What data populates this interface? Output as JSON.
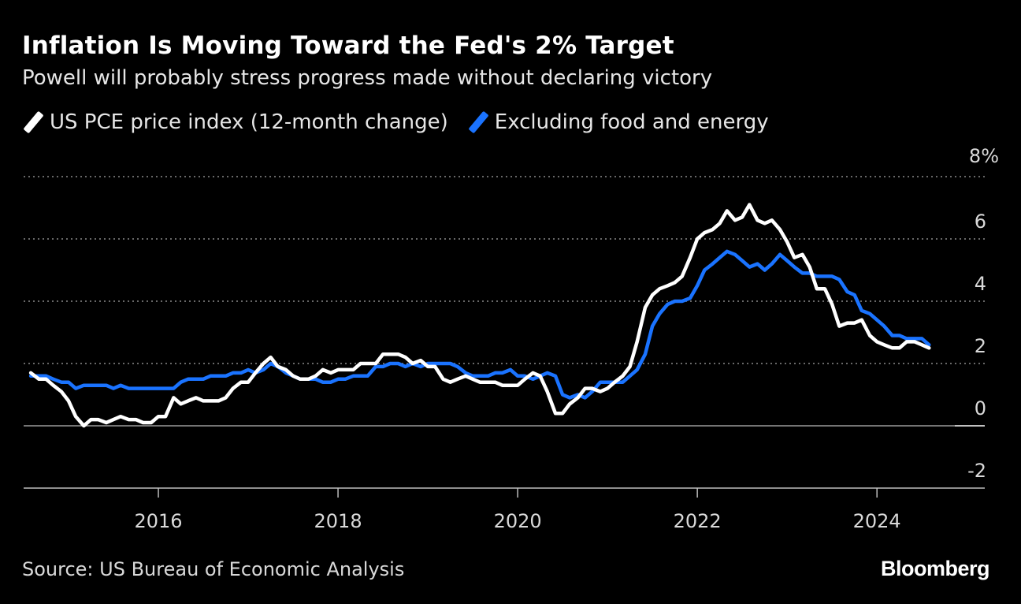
{
  "chart_data": {
    "type": "line",
    "title": "Inflation Is Moving Toward the Fed's 2% Target",
    "subtitle": "Powell will probably stress progress made without declaring victory",
    "source": "Source: US Bureau of Economic Analysis",
    "brand": "Bloomberg",
    "ylim": [
      -2,
      8
    ],
    "xlim": [
      2014.5,
      2025.2
    ],
    "y_ticks": [
      8,
      6,
      4,
      2,
      0,
      -2
    ],
    "y_tick_labels": [
      "8%",
      "6",
      "4",
      "2",
      "0",
      "-2"
    ],
    "x_ticks": [
      2016,
      2018,
      2020,
      2022,
      2024
    ],
    "x_tick_labels": [
      "2016",
      "2018",
      "2020",
      "2022",
      "2024"
    ],
    "grid": true,
    "legend_position": "top-left",
    "series": [
      {
        "name": "US PCE price index (12-month change)",
        "color": "#ffffff",
        "points": [
          [
            2014.58,
            1.7
          ],
          [
            2014.67,
            1.5
          ],
          [
            2014.75,
            1.5
          ],
          [
            2014.83,
            1.3
          ],
          [
            2014.92,
            1.1
          ],
          [
            2015.0,
            0.8
          ],
          [
            2015.08,
            0.3
          ],
          [
            2015.17,
            0.0
          ],
          [
            2015.25,
            0.2
          ],
          [
            2015.33,
            0.2
          ],
          [
            2015.42,
            0.1
          ],
          [
            2015.5,
            0.2
          ],
          [
            2015.58,
            0.3
          ],
          [
            2015.67,
            0.2
          ],
          [
            2015.75,
            0.2
          ],
          [
            2015.83,
            0.1
          ],
          [
            2015.92,
            0.1
          ],
          [
            2016.0,
            0.3
          ],
          [
            2016.08,
            0.3
          ],
          [
            2016.17,
            0.9
          ],
          [
            2016.25,
            0.7
          ],
          [
            2016.33,
            0.8
          ],
          [
            2016.42,
            0.9
          ],
          [
            2016.5,
            0.8
          ],
          [
            2016.58,
            0.8
          ],
          [
            2016.67,
            0.8
          ],
          [
            2016.75,
            0.9
          ],
          [
            2016.83,
            1.2
          ],
          [
            2016.92,
            1.4
          ],
          [
            2017.0,
            1.4
          ],
          [
            2017.08,
            1.7
          ],
          [
            2017.17,
            2.0
          ],
          [
            2017.25,
            2.2
          ],
          [
            2017.33,
            1.9
          ],
          [
            2017.42,
            1.8
          ],
          [
            2017.5,
            1.6
          ],
          [
            2017.58,
            1.5
          ],
          [
            2017.67,
            1.5
          ],
          [
            2017.75,
            1.6
          ],
          [
            2017.83,
            1.8
          ],
          [
            2017.92,
            1.7
          ],
          [
            2018.0,
            1.8
          ],
          [
            2018.08,
            1.8
          ],
          [
            2018.17,
            1.8
          ],
          [
            2018.25,
            2.0
          ],
          [
            2018.33,
            2.0
          ],
          [
            2018.42,
            2.0
          ],
          [
            2018.5,
            2.3
          ],
          [
            2018.58,
            2.3
          ],
          [
            2018.67,
            2.3
          ],
          [
            2018.75,
            2.2
          ],
          [
            2018.83,
            2.0
          ],
          [
            2018.92,
            2.1
          ],
          [
            2019.0,
            1.9
          ],
          [
            2019.08,
            1.9
          ],
          [
            2019.17,
            1.5
          ],
          [
            2019.25,
            1.4
          ],
          [
            2019.33,
            1.5
          ],
          [
            2019.42,
            1.6
          ],
          [
            2019.5,
            1.5
          ],
          [
            2019.58,
            1.4
          ],
          [
            2019.67,
            1.4
          ],
          [
            2019.75,
            1.4
          ],
          [
            2019.83,
            1.3
          ],
          [
            2019.92,
            1.3
          ],
          [
            2020.0,
            1.3
          ],
          [
            2020.08,
            1.5
          ],
          [
            2020.17,
            1.7
          ],
          [
            2020.25,
            1.6
          ],
          [
            2020.33,
            1.1
          ],
          [
            2020.42,
            0.4
          ],
          [
            2020.5,
            0.4
          ],
          [
            2020.58,
            0.7
          ],
          [
            2020.67,
            0.9
          ],
          [
            2020.75,
            1.2
          ],
          [
            2020.83,
            1.2
          ],
          [
            2020.92,
            1.1
          ],
          [
            2021.0,
            1.2
          ],
          [
            2021.08,
            1.4
          ],
          [
            2021.17,
            1.6
          ],
          [
            2021.25,
            1.9
          ],
          [
            2021.33,
            2.7
          ],
          [
            2021.42,
            3.8
          ],
          [
            2021.5,
            4.2
          ],
          [
            2021.58,
            4.4
          ],
          [
            2021.67,
            4.5
          ],
          [
            2021.75,
            4.6
          ],
          [
            2021.83,
            4.8
          ],
          [
            2021.92,
            5.4
          ],
          [
            2022.0,
            6.0
          ],
          [
            2022.08,
            6.2
          ],
          [
            2022.17,
            6.3
          ],
          [
            2022.25,
            6.5
          ],
          [
            2022.33,
            6.9
          ],
          [
            2022.42,
            6.6
          ],
          [
            2022.5,
            6.7
          ],
          [
            2022.58,
            7.1
          ],
          [
            2022.67,
            6.6
          ],
          [
            2022.75,
            6.5
          ],
          [
            2022.83,
            6.6
          ],
          [
            2022.92,
            6.3
          ],
          [
            2023.0,
            5.9
          ],
          [
            2023.08,
            5.4
          ],
          [
            2023.17,
            5.5
          ],
          [
            2023.25,
            5.1
          ],
          [
            2023.33,
            4.4
          ],
          [
            2023.42,
            4.4
          ],
          [
            2023.5,
            3.9
          ],
          [
            2023.58,
            3.2
          ],
          [
            2023.67,
            3.3
          ],
          [
            2023.75,
            3.3
          ],
          [
            2023.83,
            3.4
          ],
          [
            2023.92,
            2.9
          ],
          [
            2024.0,
            2.7
          ],
          [
            2024.08,
            2.6
          ],
          [
            2024.17,
            2.5
          ],
          [
            2024.25,
            2.5
          ],
          [
            2024.33,
            2.7
          ],
          [
            2024.42,
            2.7
          ],
          [
            2024.5,
            2.6
          ],
          [
            2024.58,
            2.5
          ]
        ]
      },
      {
        "name": "Excluding food and energy",
        "color": "#1a73ff",
        "points": [
          [
            2014.58,
            1.6
          ],
          [
            2014.67,
            1.6
          ],
          [
            2014.75,
            1.6
          ],
          [
            2014.83,
            1.5
          ],
          [
            2014.92,
            1.4
          ],
          [
            2015.0,
            1.4
          ],
          [
            2015.08,
            1.2
          ],
          [
            2015.17,
            1.3
          ],
          [
            2015.25,
            1.3
          ],
          [
            2015.33,
            1.3
          ],
          [
            2015.42,
            1.3
          ],
          [
            2015.5,
            1.2
          ],
          [
            2015.58,
            1.3
          ],
          [
            2015.67,
            1.2
          ],
          [
            2015.75,
            1.2
          ],
          [
            2015.83,
            1.2
          ],
          [
            2015.92,
            1.2
          ],
          [
            2016.0,
            1.2
          ],
          [
            2016.08,
            1.2
          ],
          [
            2016.17,
            1.2
          ],
          [
            2016.25,
            1.4
          ],
          [
            2016.33,
            1.5
          ],
          [
            2016.42,
            1.5
          ],
          [
            2016.5,
            1.5
          ],
          [
            2016.58,
            1.6
          ],
          [
            2016.67,
            1.6
          ],
          [
            2016.75,
            1.6
          ],
          [
            2016.83,
            1.7
          ],
          [
            2016.92,
            1.7
          ],
          [
            2017.0,
            1.8
          ],
          [
            2017.08,
            1.7
          ],
          [
            2017.17,
            1.8
          ],
          [
            2017.25,
            2.0
          ],
          [
            2017.33,
            1.9
          ],
          [
            2017.42,
            1.7
          ],
          [
            2017.5,
            1.6
          ],
          [
            2017.58,
            1.5
          ],
          [
            2017.67,
            1.5
          ],
          [
            2017.75,
            1.5
          ],
          [
            2017.83,
            1.4
          ],
          [
            2017.92,
            1.4
          ],
          [
            2018.0,
            1.5
          ],
          [
            2018.08,
            1.5
          ],
          [
            2018.17,
            1.6
          ],
          [
            2018.25,
            1.6
          ],
          [
            2018.33,
            1.6
          ],
          [
            2018.42,
            1.9
          ],
          [
            2018.5,
            1.9
          ],
          [
            2018.58,
            2.0
          ],
          [
            2018.67,
            2.0
          ],
          [
            2018.75,
            1.9
          ],
          [
            2018.83,
            2.0
          ],
          [
            2018.92,
            1.9
          ],
          [
            2019.0,
            2.0
          ],
          [
            2019.08,
            2.0
          ],
          [
            2019.17,
            2.0
          ],
          [
            2019.25,
            2.0
          ],
          [
            2019.33,
            1.9
          ],
          [
            2019.42,
            1.7
          ],
          [
            2019.5,
            1.6
          ],
          [
            2019.58,
            1.6
          ],
          [
            2019.67,
            1.6
          ],
          [
            2019.75,
            1.7
          ],
          [
            2019.83,
            1.7
          ],
          [
            2019.92,
            1.8
          ],
          [
            2020.0,
            1.6
          ],
          [
            2020.08,
            1.6
          ],
          [
            2020.17,
            1.5
          ],
          [
            2020.25,
            1.6
          ],
          [
            2020.33,
            1.7
          ],
          [
            2020.42,
            1.6
          ],
          [
            2020.5,
            1.0
          ],
          [
            2020.58,
            0.9
          ],
          [
            2020.67,
            1.0
          ],
          [
            2020.75,
            0.9
          ],
          [
            2020.83,
            1.1
          ],
          [
            2020.92,
            1.4
          ],
          [
            2021.0,
            1.4
          ],
          [
            2021.08,
            1.4
          ],
          [
            2021.17,
            1.4
          ],
          [
            2021.25,
            1.6
          ],
          [
            2021.33,
            1.8
          ],
          [
            2021.42,
            2.3
          ],
          [
            2021.5,
            3.2
          ],
          [
            2021.58,
            3.6
          ],
          [
            2021.67,
            3.9
          ],
          [
            2021.75,
            4.0
          ],
          [
            2021.83,
            4.0
          ],
          [
            2021.92,
            4.1
          ],
          [
            2022.0,
            4.5
          ],
          [
            2022.08,
            5.0
          ],
          [
            2022.17,
            5.2
          ],
          [
            2022.25,
            5.4
          ],
          [
            2022.33,
            5.6
          ],
          [
            2022.42,
            5.5
          ],
          [
            2022.5,
            5.3
          ],
          [
            2022.58,
            5.1
          ],
          [
            2022.67,
            5.2
          ],
          [
            2022.75,
            5.0
          ],
          [
            2022.83,
            5.2
          ],
          [
            2022.92,
            5.5
          ],
          [
            2023.0,
            5.3
          ],
          [
            2023.08,
            5.1
          ],
          [
            2023.17,
            4.9
          ],
          [
            2023.25,
            4.9
          ],
          [
            2023.33,
            4.8
          ],
          [
            2023.42,
            4.8
          ],
          [
            2023.5,
            4.8
          ],
          [
            2023.58,
            4.7
          ],
          [
            2023.67,
            4.3
          ],
          [
            2023.75,
            4.2
          ],
          [
            2023.83,
            3.7
          ],
          [
            2023.92,
            3.6
          ],
          [
            2024.0,
            3.4
          ],
          [
            2024.08,
            3.2
          ],
          [
            2024.17,
            2.9
          ],
          [
            2024.25,
            2.9
          ],
          [
            2024.33,
            2.8
          ],
          [
            2024.42,
            2.8
          ],
          [
            2024.5,
            2.8
          ],
          [
            2024.58,
            2.6
          ]
        ]
      }
    ]
  }
}
